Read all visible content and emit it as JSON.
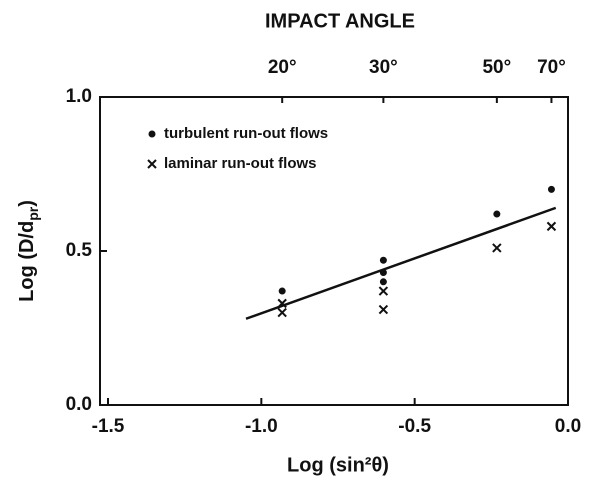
{
  "chart_data": {
    "type": "scatter",
    "top_title": "IMPACT ANGLE",
    "x_label": "Log (sin²θ)",
    "y_label": {
      "main": "Log (D/d",
      "sub": "pr",
      "end": ")"
    },
    "xlim": [
      -1.5,
      0.0
    ],
    "ylim": [
      0.0,
      1.0
    ],
    "xticks": [
      -1.5,
      {
        "value": -1.0,
        "label": "-1.0"
      },
      -0.5,
      {
        "value": 0.0,
        "label": "0.0"
      }
    ],
    "yticks": [
      {
        "value": 0.0,
        "label": "0.0"
      },
      0.5,
      {
        "value": 1.0,
        "label": "1.0"
      }
    ],
    "x2ticks": [
      {
        "value": -0.932,
        "label": "20°"
      },
      {
        "value": -0.602,
        "label": "30°"
      },
      {
        "value": -0.232,
        "label": "50°"
      },
      {
        "value": -0.054,
        "label": "70°"
      }
    ],
    "legend": "upper left",
    "series": [
      {
        "name": "turbulent run-out flows",
        "marker": "dot",
        "color": "#111",
        "x": [
          -0.932,
          -0.602,
          -0.602,
          -0.602,
          -0.232,
          -0.054
        ],
        "values": [
          0.37,
          0.47,
          0.43,
          0.4,
          0.62,
          0.7
        ]
      },
      {
        "name": "laminar run-out flows",
        "marker": "cross",
        "color": "#111",
        "x": [
          -0.932,
          -0.932,
          -0.602,
          -0.602,
          -0.232,
          -0.054
        ],
        "values": [
          0.33,
          0.3,
          0.37,
          0.31,
          0.51,
          0.58
        ]
      }
    ],
    "fit_line": {
      "x": [
        -1.05,
        -0.04
      ],
      "values": [
        0.28,
        0.64
      ]
    }
  }
}
